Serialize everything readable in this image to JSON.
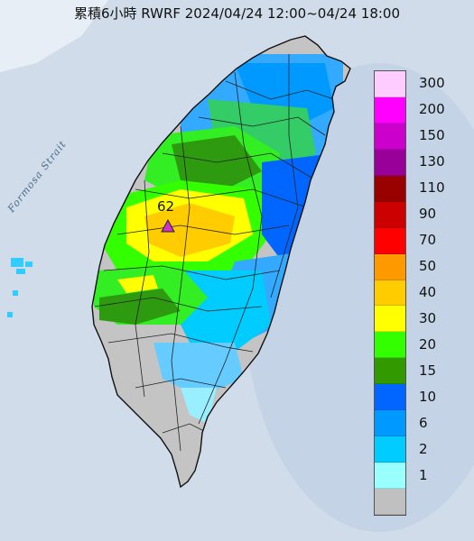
{
  "title": "累積6小時 RWRF 2024/04/24 12:00~04/24 18:00",
  "strait_label": "Formosa Strait",
  "max_marker": {
    "value": "62",
    "color": "#cc33cc"
  },
  "legend": {
    "items": [
      {
        "label": "300",
        "color": "#ffccff"
      },
      {
        "label": "200",
        "color": "#ff00ff"
      },
      {
        "label": "150",
        "color": "#cc00cc"
      },
      {
        "label": "130",
        "color": "#990099"
      },
      {
        "label": "110",
        "color": "#990000"
      },
      {
        "label": "90",
        "color": "#cc0000"
      },
      {
        "label": "70",
        "color": "#ff0000"
      },
      {
        "label": "50",
        "color": "#ff9900"
      },
      {
        "label": "40",
        "color": "#ffcc00"
      },
      {
        "label": "30",
        "color": "#ffff00"
      },
      {
        "label": "20",
        "color": "#33ff00"
      },
      {
        "label": "15",
        "color": "#339900"
      },
      {
        "label": "10",
        "color": "#0066ff"
      },
      {
        "label": "6",
        "color": "#0099ff"
      },
      {
        "label": "2",
        "color": "#00ccff"
      },
      {
        "label": "1",
        "color": "#99ffff"
      },
      {
        "label": "",
        "color": "#c0c0c0"
      }
    ]
  },
  "colors": {
    "sea": "#d4e0ee",
    "land_gray": "#c4c4c4"
  }
}
